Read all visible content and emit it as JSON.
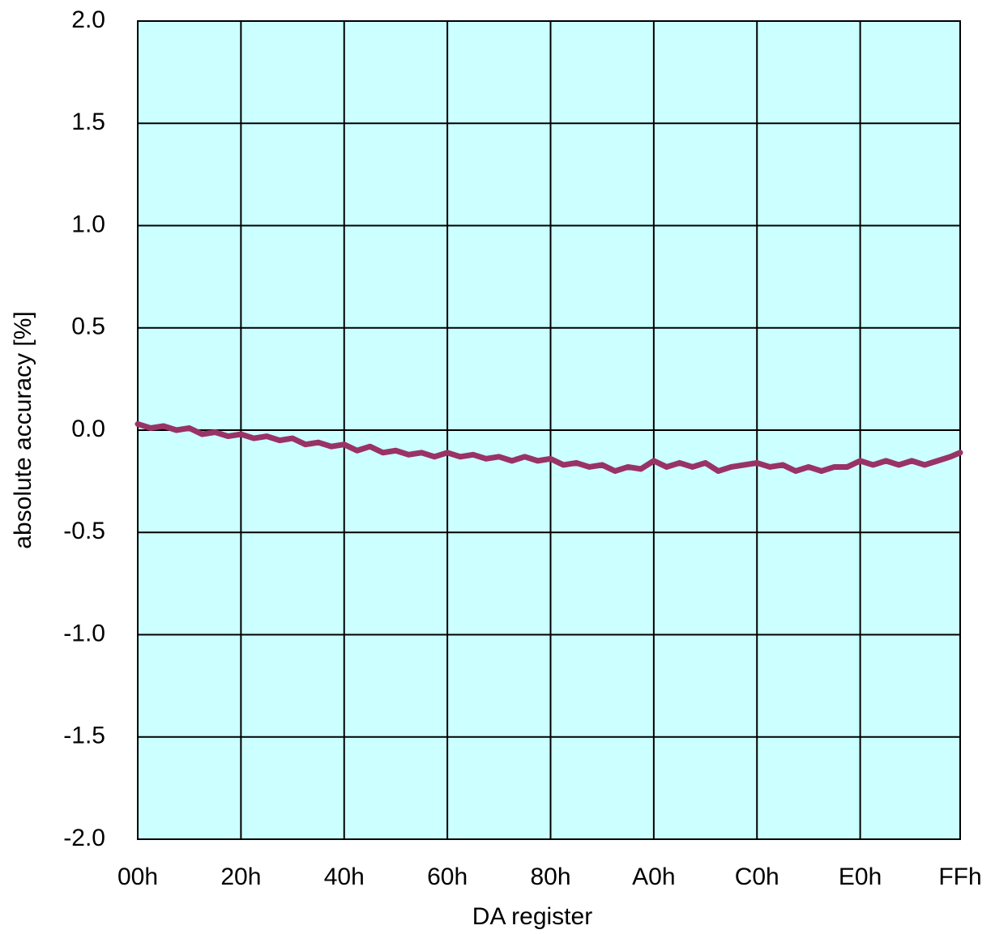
{
  "chart_data": {
    "type": "line",
    "xlabel": "DA register",
    "ylabel": "absolute accuracy [%]",
    "x": [
      0,
      4,
      8,
      12,
      16,
      20,
      24,
      28,
      32,
      36,
      40,
      44,
      48,
      52,
      56,
      60,
      64,
      68,
      72,
      76,
      80,
      84,
      88,
      92,
      96,
      100,
      104,
      108,
      112,
      116,
      120,
      124,
      128,
      132,
      136,
      140,
      144,
      148,
      152,
      156,
      160,
      164,
      168,
      172,
      176,
      180,
      184,
      188,
      192,
      196,
      200,
      204,
      208,
      212,
      216,
      220,
      224,
      228,
      232,
      236,
      240,
      244,
      248,
      252,
      255
    ],
    "series": [
      {
        "color": "#993366",
        "values": [
          0.03,
          0.01,
          0.02,
          0.0,
          0.01,
          -0.02,
          -0.01,
          -0.03,
          -0.02,
          -0.04,
          -0.03,
          -0.05,
          -0.04,
          -0.07,
          -0.06,
          -0.08,
          -0.07,
          -0.1,
          -0.08,
          -0.11,
          -0.1,
          -0.12,
          -0.11,
          -0.13,
          -0.11,
          -0.13,
          -0.12,
          -0.14,
          -0.13,
          -0.15,
          -0.13,
          -0.15,
          -0.14,
          -0.17,
          -0.16,
          -0.18,
          -0.17,
          -0.2,
          -0.18,
          -0.19,
          -0.15,
          -0.18,
          -0.16,
          -0.18,
          -0.16,
          -0.2,
          -0.18,
          -0.17,
          -0.16,
          -0.18,
          -0.17,
          -0.2,
          -0.18,
          -0.2,
          -0.18,
          -0.18,
          -0.15,
          -0.17,
          -0.15,
          -0.17,
          -0.15,
          -0.17,
          -0.15,
          -0.13,
          -0.11
        ]
      }
    ],
    "xlim": [
      0,
      255
    ],
    "xticks": [
      {
        "value": 0,
        "label": "00h"
      },
      {
        "value": 32,
        "label": "20h"
      },
      {
        "value": 64,
        "label": "40h"
      },
      {
        "value": 96,
        "label": "60h"
      },
      {
        "value": 128,
        "label": "80h"
      },
      {
        "value": 160,
        "label": "A0h"
      },
      {
        "value": 192,
        "label": "C0h"
      },
      {
        "value": 224,
        "label": "E0h"
      },
      {
        "value": 255,
        "label": "FFh"
      }
    ],
    "ylim": [
      -2,
      2
    ],
    "yticks": [
      {
        "value": 2,
        "label": "2.0"
      },
      1.5,
      {
        "value": 1,
        "label": "1.0"
      },
      0.5,
      {
        "value": 0,
        "label": "0.0"
      },
      -0.5,
      {
        "value": -1,
        "label": "-1.0"
      },
      -1.5,
      {
        "value": -2,
        "label": "-2.0"
      }
    ],
    "grid": true,
    "background": "#ccffff"
  }
}
